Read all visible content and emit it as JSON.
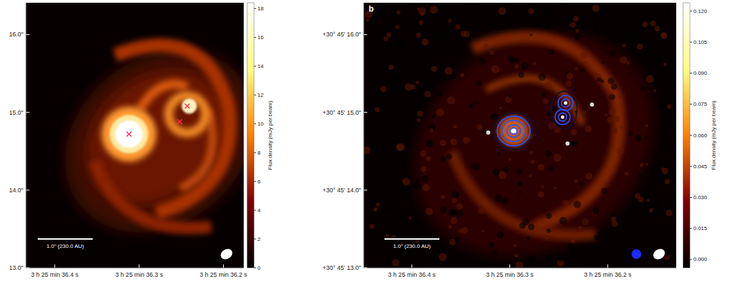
{
  "chart_data": [
    {
      "type": "image",
      "xlim": [
        36.434,
        36.176
      ],
      "xticks": [
        {
          "value": 36.4,
          "label": "3 h 25 min 36.4 s"
        },
        {
          "value": 36.3,
          "label": "3 h 25 min 36.3 s"
        },
        {
          "value": 36.2,
          "label": "3 h 25 min 36.2 s"
        }
      ],
      "ylim": [
        13.0,
        16.41
      ],
      "yticks": [
        {
          "value": 16.0,
          "label": "16.0\""
        },
        {
          "value": 15.0,
          "label": "15.0\""
        },
        {
          "value": 14.0,
          "label": "14.0\""
        },
        {
          "value": 13.0,
          "label": "13.0\""
        }
      ],
      "colorbar": {
        "label": "Flux density (mJy per beam)",
        "range": [
          0,
          18.4
        ],
        "ticks": [
          0,
          2,
          4,
          6,
          8,
          10,
          12,
          14,
          16,
          18
        ]
      },
      "scale_bar_label": "1.0\" (230.0 AU)",
      "sources": [
        {
          "ra": 36.312,
          "dec": 14.72
        },
        {
          "ra": 36.243,
          "dec": 15.08
        },
        {
          "ra": 36.252,
          "dec": 14.88
        }
      ],
      "marker": "x",
      "color": "#ff2a55"
    },
    {
      "type": "image",
      "panel_label": "b",
      "xlim": [
        36.449,
        36.13
      ],
      "xticks": [
        {
          "value": 36.4,
          "label": "3 h 25 min 36.4 s"
        },
        {
          "value": 36.3,
          "label": "3 h 25 min 36.3 s"
        },
        {
          "value": 36.2,
          "label": "3 h 25 min 36.2 s"
        }
      ],
      "ylim": [
        13.0,
        16.41
      ],
      "yticks": [
        {
          "value": 16.0,
          "label": "+30° 45' 16.0\""
        },
        {
          "value": 15.0,
          "label": "+30° 45' 15.0\""
        },
        {
          "value": 14.0,
          "label": "+30° 45' 14.0\""
        },
        {
          "value": 13.0,
          "label": "+30° 45' 13.0\""
        }
      ],
      "colorbar": {
        "label": "Flux density (mJy per beam)",
        "range": [
          -0.004,
          0.124
        ],
        "ticks": [
          {
            "value": 0,
            "label": "0.000"
          },
          {
            "value": 0.015,
            "label": "0.015"
          },
          {
            "value": 0.03,
            "label": "0.030"
          },
          {
            "value": 0.045,
            "label": "0.045"
          },
          {
            "value": 0.06,
            "label": "0.060"
          },
          {
            "value": 0.075,
            "label": "0.075"
          },
          {
            "value": 0.09,
            "label": "0.090"
          },
          {
            "value": 0.105,
            "label": "0.105"
          },
          {
            "value": 0.12,
            "label": "0.120"
          }
        ]
      },
      "scale_bar_label": "1.0\" (230.0 AU)",
      "sources": [
        {
          "ra": 36.322,
          "dec": 14.74
        },
        {
          "ra": 36.241,
          "dec": 14.6
        },
        {
          "ra": 36.216,
          "dec": 15.1
        }
      ],
      "peaks": [
        {
          "ra": 36.296,
          "dec": 14.76
        },
        {
          "ra": 36.243,
          "dec": 15.12
        },
        {
          "ra": 36.246,
          "dec": 14.94
        }
      ],
      "marker": "circle",
      "color": "#ffffff"
    }
  ]
}
